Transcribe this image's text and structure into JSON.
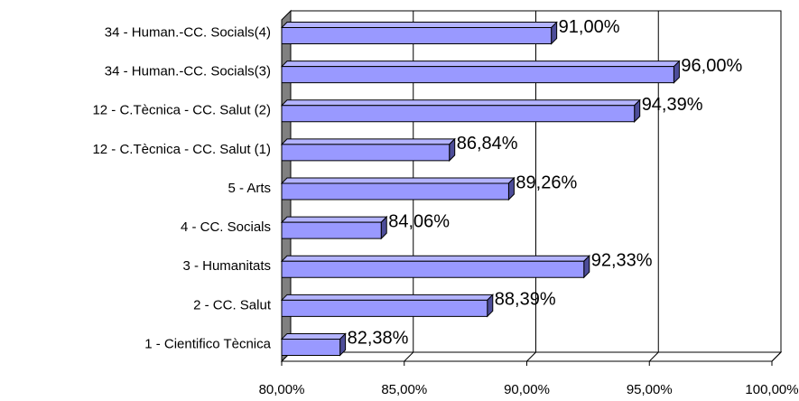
{
  "chart_data": {
    "type": "bar",
    "orientation": "horizontal",
    "categories": [
      "34 - Human.-CC. Socials(4)",
      "34 - Human.-CC. Socials(3)",
      "12 - C.Tècnica - CC. Salut (2)",
      "12 - C.Tècnica - CC. Salut (1)",
      "5 - Arts",
      "4 - CC. Socials",
      "3 - Humanitats",
      "2 - CC. Salut",
      "1 - Cientifico Tècnica"
    ],
    "values": [
      91.0,
      96.0,
      94.39,
      86.84,
      89.26,
      84.06,
      92.33,
      88.39,
      82.38
    ],
    "value_labels": [
      "91,00%",
      "96,00%",
      "94,39%",
      "86,84%",
      "89,26%",
      "84,06%",
      "92,33%",
      "88,39%",
      "82,38%"
    ],
    "color": "#9999ff",
    "xlim": [
      80,
      100
    ],
    "xticks": [
      {
        "value": 80,
        "label": "80,00%"
      },
      {
        "value": 85,
        "label": "85,00%"
      },
      {
        "value": 90,
        "label": "90,00%"
      },
      {
        "value": 95,
        "label": "95,00%"
      },
      {
        "value": 100,
        "label": "100,00%"
      }
    ],
    "grid": true
  }
}
